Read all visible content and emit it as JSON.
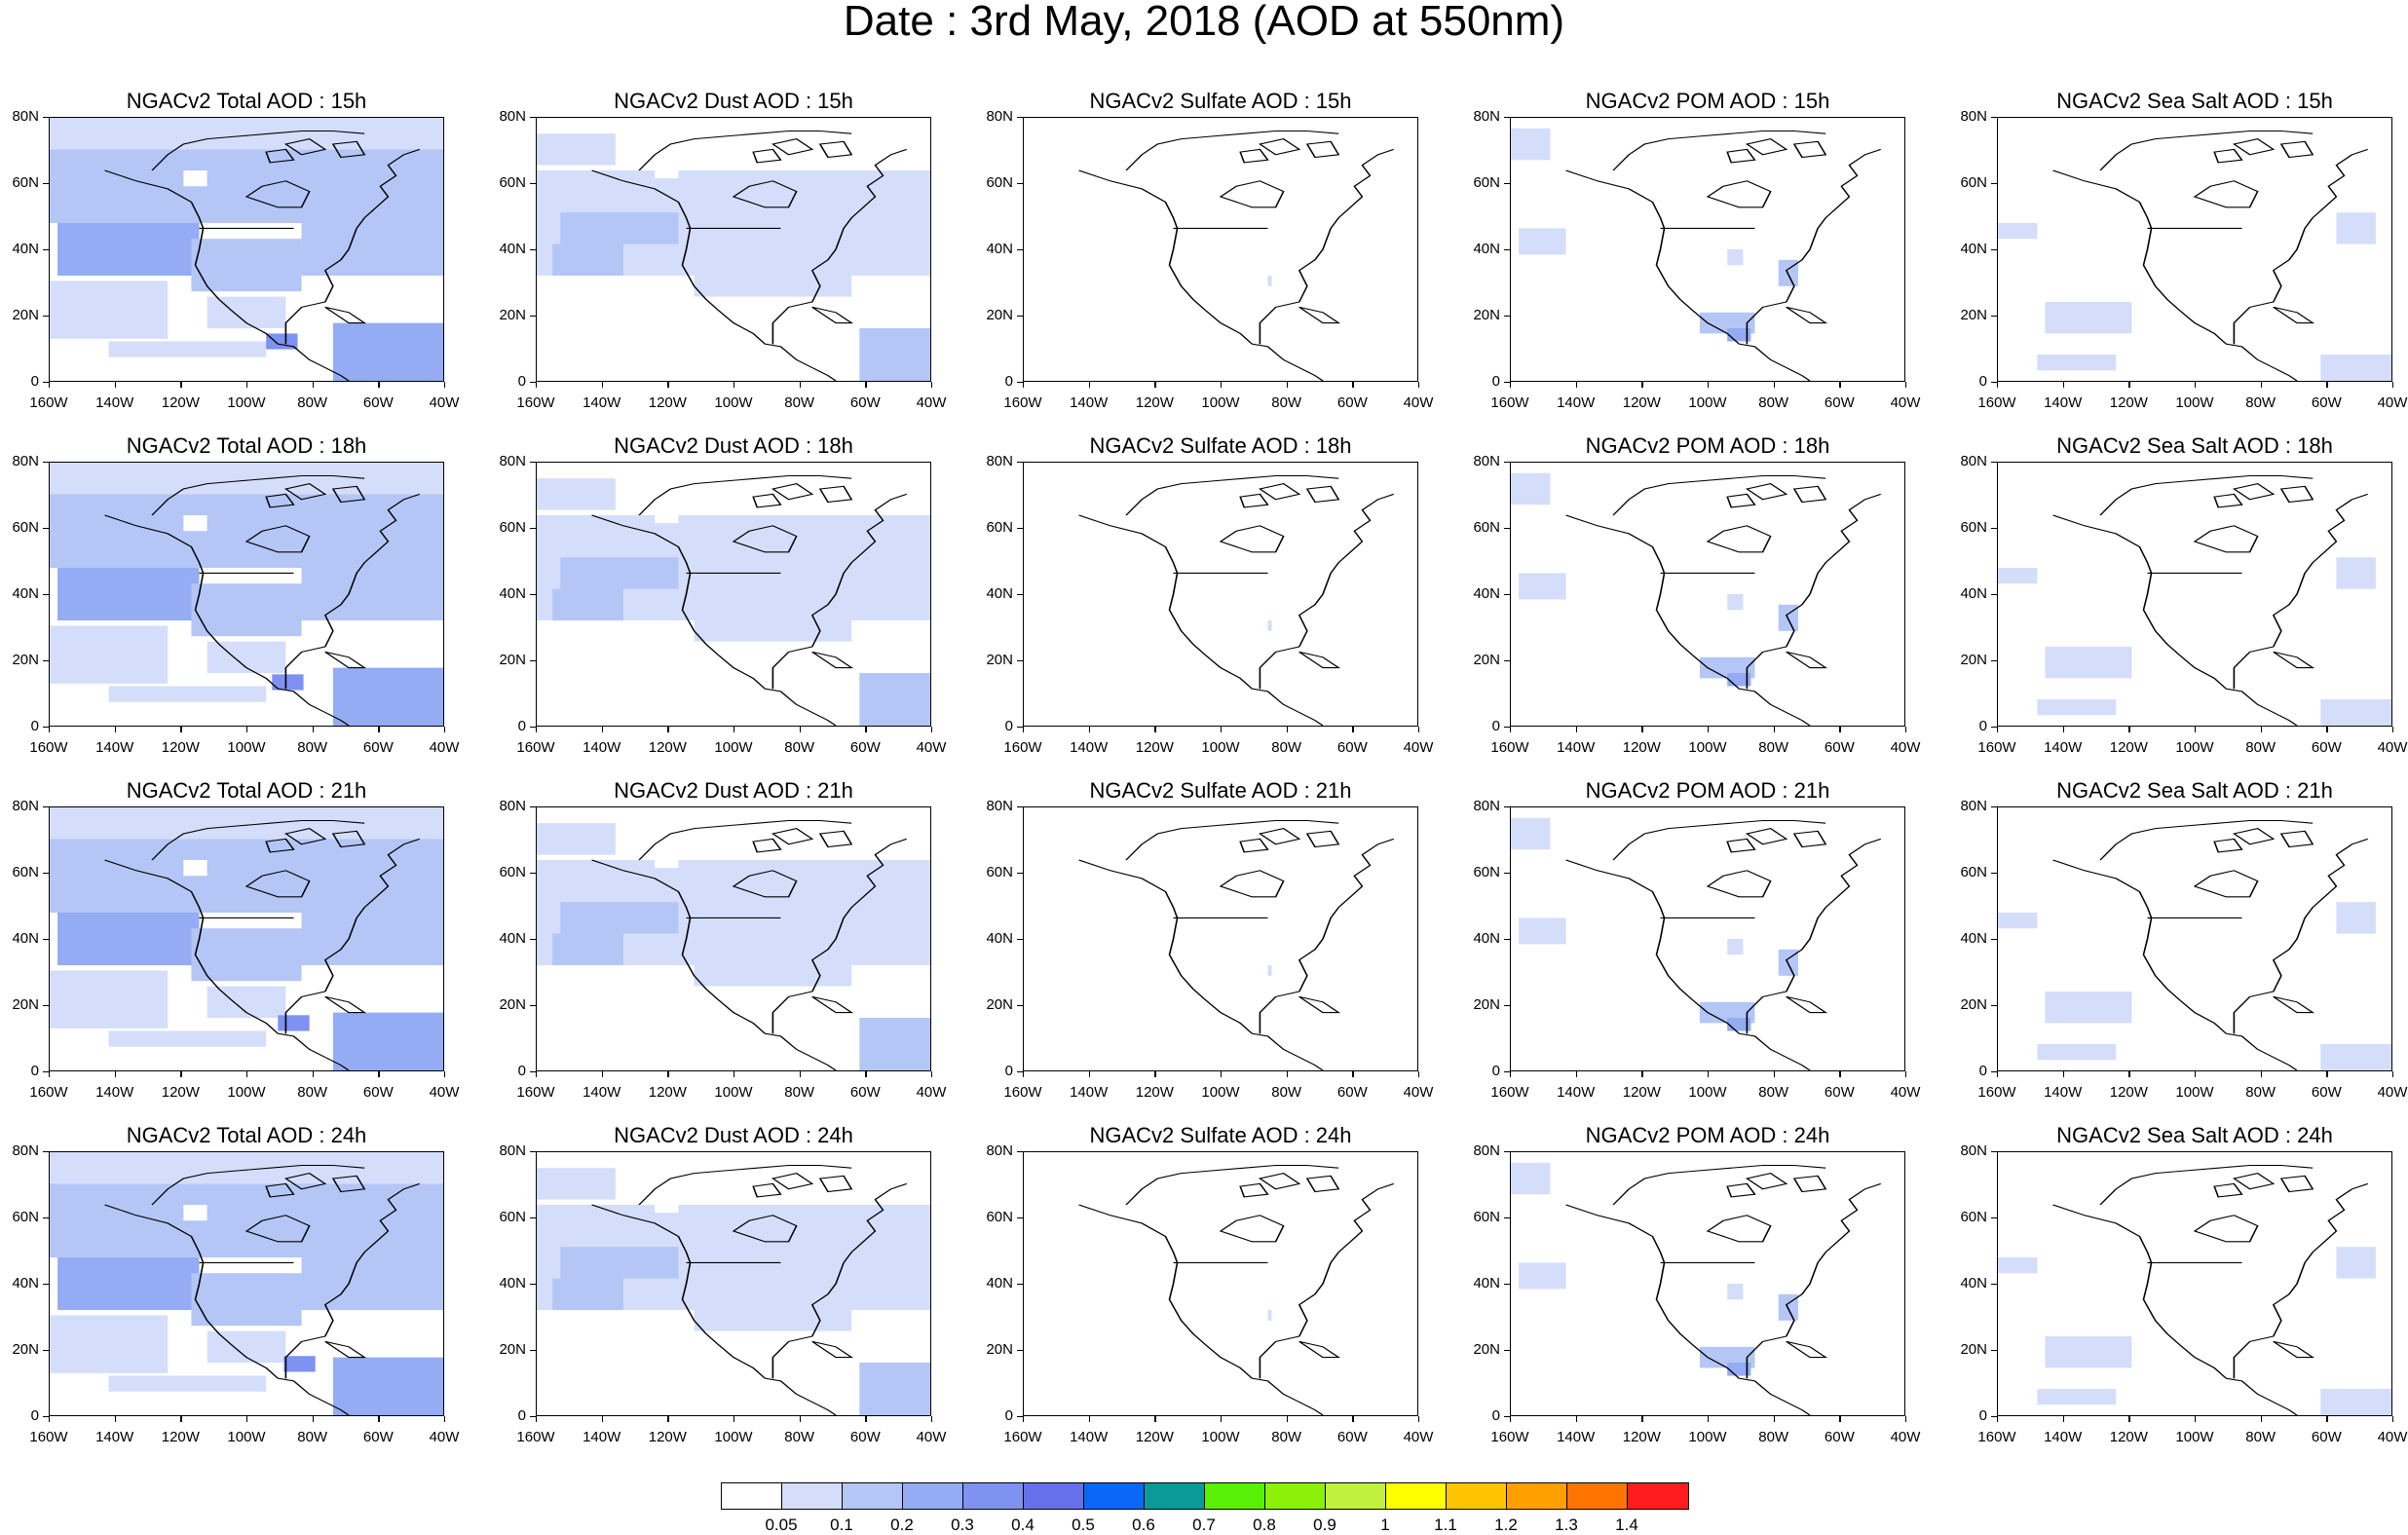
{
  "title": "Date : 3rd May, 2018 (AOD at 550nm)",
  "x_ticks": [
    "160W",
    "140W",
    "120W",
    "100W",
    "80W",
    "60W",
    "40W"
  ],
  "y_ticks": [
    "80N",
    "60N",
    "40N",
    "20N",
    "0"
  ],
  "rows": [
    {
      "hour": "15h",
      "panels": [
        {
          "title": "NGACv2 Total AOD : 15h",
          "field": "total"
        },
        {
          "title": "NGACv2 Dust AOD : 15h",
          "field": "dust"
        },
        {
          "title": "NGACv2 Sulfate AOD : 15h",
          "field": "sulfate"
        },
        {
          "title": "NGACv2 POM AOD : 15h",
          "field": "pom"
        },
        {
          "title": "NGACv2 Sea Salt AOD : 15h",
          "field": "seasalt"
        }
      ]
    },
    {
      "hour": "18h",
      "panels": [
        {
          "title": "NGACv2 Total AOD : 18h",
          "field": "total"
        },
        {
          "title": "NGACv2 Dust AOD : 18h",
          "field": "dust"
        },
        {
          "title": "NGACv2 Sulfate AOD : 18h",
          "field": "sulfate"
        },
        {
          "title": "NGACv2 POM AOD : 18h",
          "field": "pom"
        },
        {
          "title": "NGACv2 Sea Salt AOD : 18h",
          "field": "seasalt"
        }
      ]
    },
    {
      "hour": "21h",
      "panels": [
        {
          "title": "NGACv2 Total AOD : 21h",
          "field": "total"
        },
        {
          "title": "NGACv2 Dust AOD : 21h",
          "field": "dust"
        },
        {
          "title": "NGACv2 Sulfate AOD : 21h",
          "field": "sulfate"
        },
        {
          "title": "NGACv2 POM AOD : 21h",
          "field": "pom"
        },
        {
          "title": "NGACv2 Sea Salt AOD : 21h",
          "field": "seasalt"
        }
      ]
    },
    {
      "hour": "24h",
      "panels": [
        {
          "title": "NGACv2 Total AOD : 24h",
          "field": "total"
        },
        {
          "title": "NGACv2 Dust AOD : 24h",
          "field": "dust"
        },
        {
          "title": "NGACv2 Sulfate AOD : 24h",
          "field": "sulfate"
        },
        {
          "title": "NGACv2 POM AOD : 24h",
          "field": "pom"
        },
        {
          "title": "NGACv2 Sea Salt  AOD : 24h",
          "field": "seasalt"
        }
      ]
    }
  ],
  "colorbar": {
    "colors": [
      "#ffffff",
      "#d4defa",
      "#b4c6f6",
      "#94acf4",
      "#7e92f2",
      "#6670ea",
      "#0a68f8",
      "#0a9a98",
      "#58f006",
      "#8cf008",
      "#c2f03e",
      "#ffff00",
      "#ffc400",
      "#ffa000",
      "#ff7400",
      "#ff1c1c"
    ],
    "labels": [
      "0.05",
      "0.1",
      "0.2",
      "0.3",
      "0.4",
      "0.5",
      "0.6",
      "0.7",
      "0.8",
      "0.9",
      "1",
      "1.1",
      "1.2",
      "1.3",
      "1.4"
    ]
  }
}
